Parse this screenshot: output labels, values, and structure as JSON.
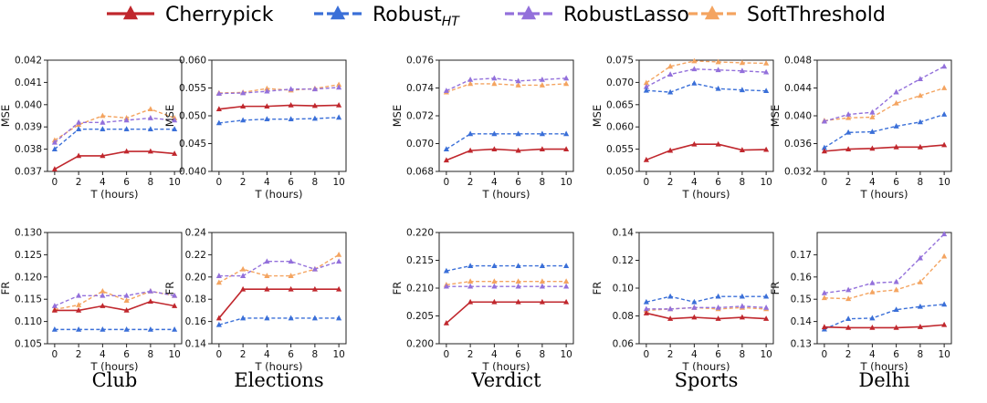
{
  "legend": {
    "items": [
      {
        "key": "cherrypick",
        "label": "Cherrypick",
        "sub": "",
        "color": "#c0272d",
        "dashed": false
      },
      {
        "key": "robust_ht",
        "label": "Robust",
        "sub": "HT",
        "color": "#3a6fd8",
        "dashed": true
      },
      {
        "key": "robust_lasso",
        "label": "RobustLasso",
        "sub": "",
        "color": "#9370db",
        "dashed": true
      },
      {
        "key": "soft_threshold",
        "label": "SoftThreshold",
        "sub": "",
        "color": "#f4a460",
        "dashed": true
      }
    ]
  },
  "chart_data": [
    {
      "type": "line",
      "dataset": "Club",
      "metric": "MSE",
      "xlabel": "T (hours)",
      "ylabel": "MSE",
      "x": [
        0,
        2,
        4,
        6,
        8,
        10
      ],
      "ylim": [
        0.037,
        0.042
      ],
      "yticks": [
        "0.037",
        "0.038",
        "0.039",
        "0.040",
        "0.041",
        "0.042"
      ],
      "series": [
        {
          "name": "Cherrypick",
          "values": [
            0.0371,
            0.0377,
            0.0377,
            0.0379,
            0.0379,
            0.0378
          ]
        },
        {
          "name": "RobustHT",
          "values": [
            0.038,
            0.0389,
            0.0389,
            0.0389,
            0.0389,
            0.0389
          ]
        },
        {
          "name": "RobustLasso",
          "values": [
            0.0383,
            0.0392,
            0.0392,
            0.0393,
            0.0394,
            0.0393
          ]
        },
        {
          "name": "SoftThreshold",
          "values": [
            0.0384,
            0.0391,
            0.0395,
            0.0394,
            0.0398,
            0.0394
          ]
        }
      ]
    },
    {
      "type": "line",
      "dataset": "Elections",
      "metric": "MSE",
      "xlabel": "T (hours)",
      "ylabel": "MSE",
      "x": [
        0,
        2,
        4,
        6,
        8,
        10
      ],
      "ylim": [
        0.04,
        0.06
      ],
      "yticks": [
        "0.040",
        "0.045",
        "0.050",
        "0.055",
        "0.060"
      ],
      "series": [
        {
          "name": "Cherrypick",
          "values": [
            0.0512,
            0.0517,
            0.0517,
            0.0519,
            0.0518,
            0.0519
          ]
        },
        {
          "name": "RobustHT",
          "values": [
            0.0487,
            0.0492,
            0.0494,
            0.0494,
            0.0495,
            0.0497
          ]
        },
        {
          "name": "RobustLasso",
          "values": [
            0.054,
            0.0541,
            0.0544,
            0.0548,
            0.0548,
            0.0551
          ]
        },
        {
          "name": "SoftThreshold",
          "values": [
            0.0541,
            0.0542,
            0.0549,
            0.0546,
            0.0549,
            0.0556
          ]
        }
      ]
    },
    {
      "type": "line",
      "dataset": "Verdict",
      "metric": "MSE",
      "xlabel": "T (hours)",
      "ylabel": "MSE",
      "x": [
        0,
        2,
        4,
        6,
        8,
        10
      ],
      "ylim": [
        0.068,
        0.076
      ],
      "yticks": [
        "0.068",
        "0.070",
        "0.072",
        "0.074",
        "0.076"
      ],
      "series": [
        {
          "name": "Cherrypick",
          "values": [
            0.0688,
            0.0695,
            0.0696,
            0.0695,
            0.0696,
            0.0696
          ]
        },
        {
          "name": "RobustHT",
          "values": [
            0.0696,
            0.0707,
            0.0707,
            0.0707,
            0.0707,
            0.0707
          ]
        },
        {
          "name": "RobustLasso",
          "values": [
            0.0738,
            0.0746,
            0.0747,
            0.0745,
            0.0746,
            0.0747
          ]
        },
        {
          "name": "SoftThreshold",
          "values": [
            0.0737,
            0.0743,
            0.0743,
            0.0742,
            0.0742,
            0.0743
          ]
        }
      ]
    },
    {
      "type": "line",
      "dataset": "Sports",
      "metric": "MSE",
      "xlabel": "T (hours)",
      "ylabel": "MSE",
      "x": [
        0,
        2,
        4,
        6,
        8,
        10
      ],
      "ylim": [
        0.05,
        0.075
      ],
      "yticks": [
        "0.050",
        "0.055",
        "0.060",
        "0.065",
        "0.070",
        "0.075"
      ],
      "series": [
        {
          "name": "Cherrypick",
          "values": [
            0.0526,
            0.0547,
            0.0561,
            0.0561,
            0.0548,
            0.0549
          ]
        },
        {
          "name": "RobustHT",
          "values": [
            0.0682,
            0.0678,
            0.0698,
            0.0686,
            0.0683,
            0.0681
          ]
        },
        {
          "name": "RobustLasso",
          "values": [
            0.069,
            0.0718,
            0.073,
            0.0728,
            0.0726,
            0.0723
          ]
        },
        {
          "name": "SoftThreshold",
          "values": [
            0.0699,
            0.0736,
            0.0748,
            0.0746,
            0.0744,
            0.0743
          ]
        }
      ]
    },
    {
      "type": "line",
      "dataset": "Delhi",
      "metric": "MSE",
      "xlabel": "T (hours)",
      "ylabel": "MSE",
      "x": [
        0,
        2,
        4,
        6,
        8,
        10
      ],
      "ylim": [
        0.032,
        0.048
      ],
      "yticks": [
        "0.032",
        "0.036",
        "0.040",
        "0.044",
        "0.048"
      ],
      "series": [
        {
          "name": "Cherrypick",
          "values": [
            0.0349,
            0.0352,
            0.0353,
            0.0355,
            0.0355,
            0.0358
          ]
        },
        {
          "name": "RobustHT",
          "values": [
            0.0354,
            0.0376,
            0.0377,
            0.0385,
            0.0391,
            0.0402
          ]
        },
        {
          "name": "RobustLasso",
          "values": [
            0.0392,
            0.0402,
            0.0405,
            0.0434,
            0.0453,
            0.0471
          ]
        },
        {
          "name": "SoftThreshold",
          "values": [
            0.0393,
            0.0397,
            0.0398,
            0.0418,
            0.0429,
            0.044
          ]
        }
      ]
    },
    {
      "type": "line",
      "dataset": "Club",
      "metric": "FR",
      "xlabel": "T (hours)",
      "ylabel": "FR",
      "x": [
        0,
        2,
        4,
        6,
        8,
        10
      ],
      "ylim": [
        0.105,
        0.13
      ],
      "yticks": [
        "0.105",
        "0.110",
        "0.115",
        "0.120",
        "0.125",
        "0.130"
      ],
      "series": [
        {
          "name": "Cherrypick",
          "values": [
            0.1125,
            0.1125,
            0.1135,
            0.1125,
            0.1145,
            0.1135
          ]
        },
        {
          "name": "RobustHT",
          "values": [
            0.1082,
            0.1082,
            0.1082,
            0.1082,
            0.1082,
            0.1082
          ]
        },
        {
          "name": "RobustLasso",
          "values": [
            0.1135,
            0.1158,
            0.1158,
            0.1158,
            0.1168,
            0.1158
          ]
        },
        {
          "name": "SoftThreshold",
          "values": [
            0.1127,
            0.1137,
            0.1168,
            0.1147,
            0.1168,
            0.1158
          ]
        }
      ]
    },
    {
      "type": "line",
      "dataset": "Elections",
      "metric": "FR",
      "xlabel": "T (hours)",
      "ylabel": "FR",
      "x": [
        0,
        2,
        4,
        6,
        8,
        10
      ],
      "ylim": [
        0.14,
        0.24
      ],
      "yticks": [
        "0.14",
        "0.16",
        "0.18",
        "0.20",
        "0.22",
        "0.24"
      ],
      "series": [
        {
          "name": "Cherrypick",
          "values": [
            0.163,
            0.189,
            0.189,
            0.189,
            0.189,
            0.189
          ]
        },
        {
          "name": "RobustHT",
          "values": [
            0.157,
            0.163,
            0.163,
            0.163,
            0.163,
            0.163
          ]
        },
        {
          "name": "RobustLasso",
          "values": [
            0.201,
            0.201,
            0.214,
            0.214,
            0.207,
            0.214
          ]
        },
        {
          "name": "SoftThreshold",
          "values": [
            0.195,
            0.207,
            0.201,
            0.201,
            0.207,
            0.22
          ]
        }
      ]
    },
    {
      "type": "line",
      "dataset": "Verdict",
      "metric": "FR",
      "xlabel": "T (hours)",
      "ylabel": "FR",
      "x": [
        0,
        2,
        4,
        6,
        8,
        10
      ],
      "ylim": [
        0.2,
        0.22
      ],
      "yticks": [
        "0.200",
        "0.205",
        "0.210",
        "0.215",
        "0.220"
      ],
      "series": [
        {
          "name": "Cherrypick",
          "values": [
            0.2037,
            0.2075,
            0.2075,
            0.2075,
            0.2075,
            0.2075
          ]
        },
        {
          "name": "RobustHT",
          "values": [
            0.2131,
            0.214,
            0.214,
            0.214,
            0.214,
            0.214
          ]
        },
        {
          "name": "RobustLasso",
          "values": [
            0.2103,
            0.2103,
            0.2103,
            0.2103,
            0.2103,
            0.2103
          ]
        },
        {
          "name": "SoftThreshold",
          "values": [
            0.2106,
            0.2112,
            0.2112,
            0.2112,
            0.2112,
            0.2112
          ]
        }
      ]
    },
    {
      "type": "line",
      "dataset": "Sports",
      "metric": "FR",
      "xlabel": "T (hours)",
      "ylabel": "FR",
      "x": [
        0,
        2,
        4,
        6,
        8,
        10
      ],
      "ylim": [
        0.06,
        0.14
      ],
      "yticks": [
        "0.06",
        "0.08",
        "0.10",
        "0.12",
        "0.14"
      ],
      "series": [
        {
          "name": "Cherrypick",
          "values": [
            0.082,
            0.078,
            0.079,
            0.078,
            0.079,
            0.078
          ]
        },
        {
          "name": "RobustHT",
          "values": [
            0.09,
            0.094,
            0.09,
            0.094,
            0.094,
            0.094
          ]
        },
        {
          "name": "RobustLasso",
          "values": [
            0.085,
            0.085,
            0.086,
            0.086,
            0.087,
            0.086
          ]
        },
        {
          "name": "SoftThreshold",
          "values": [
            0.084,
            0.085,
            0.086,
            0.085,
            0.086,
            0.085
          ]
        }
      ]
    },
    {
      "type": "line",
      "dataset": "Delhi",
      "metric": "FR",
      "xlabel": "T (hours)",
      "ylabel": "FR",
      "x": [
        0,
        2,
        4,
        6,
        8,
        10
      ],
      "ylim": [
        0.13,
        0.18
      ],
      "yticks": [
        "0.13",
        "0.14",
        "0.15",
        "0.16",
        "0.17"
      ],
      "series": [
        {
          "name": "Cherrypick",
          "values": [
            0.1375,
            0.1372,
            0.1372,
            0.1372,
            0.1376,
            0.1385
          ]
        },
        {
          "name": "RobustHT",
          "values": [
            0.1365,
            0.1412,
            0.1415,
            0.1453,
            0.1467,
            0.1477
          ]
        },
        {
          "name": "RobustLasso",
          "values": [
            0.1528,
            0.1542,
            0.1573,
            0.1578,
            0.1685,
            0.1793
          ]
        },
        {
          "name": "SoftThreshold",
          "values": [
            0.1506,
            0.1502,
            0.1532,
            0.1542,
            0.1577,
            0.1693
          ]
        }
      ]
    }
  ]
}
